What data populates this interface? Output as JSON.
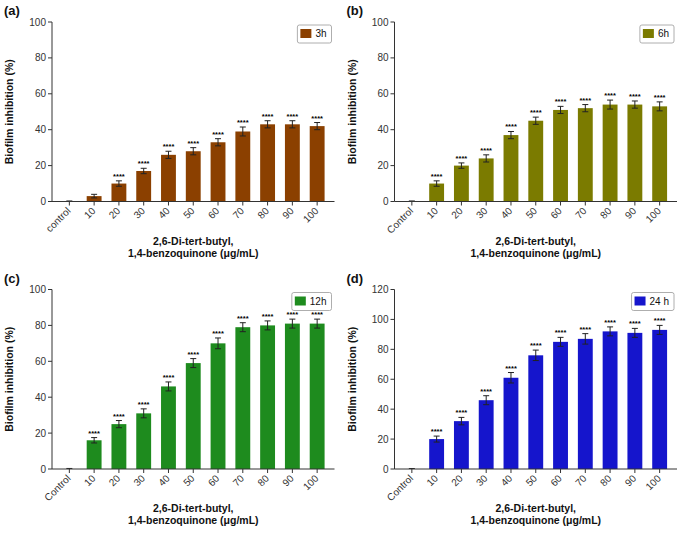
{
  "chart_data": [
    {
      "type": "bar",
      "title": "(a)",
      "xlabel": "2,6-Di-tert-butyl,\n1,4-benzoquinone (μg/mL)",
      "ylabel": "Biofilm inhibition (%)",
      "categories": [
        "control",
        "10",
        "20",
        "30",
        "40",
        "50",
        "60",
        "70",
        "80",
        "90",
        "100"
      ],
      "series": [
        {
          "name": "3h",
          "color": "#8B4000",
          "values": [
            0,
            3,
            10,
            17,
            26,
            28,
            33,
            39,
            43,
            43,
            42
          ],
          "errors": [
            0.3,
            1.0,
            1.5,
            1.5,
            2.0,
            2.0,
            2.0,
            2.5,
            2.0,
            2.0,
            2.0
          ],
          "sig": [
            null,
            null,
            "****",
            "****",
            "****",
            "****",
            "****",
            "****",
            "****",
            "****",
            "****"
          ]
        }
      ],
      "ylim": [
        0,
        100
      ],
      "yticks": [
        0,
        20,
        40,
        60,
        80,
        100
      ],
      "legend": "upper right",
      "grid": false
    },
    {
      "type": "bar",
      "title": "(b)",
      "xlabel": "2,6-Di-tert-butyl,\n1,4-benzoquinone (μg/mL)",
      "ylabel": "Biofilm inhibition (%)",
      "categories": [
        "Control",
        "10",
        "20",
        "30",
        "40",
        "50",
        "60",
        "70",
        "80",
        "90",
        "100"
      ],
      "series": [
        {
          "name": "6h",
          "color": "#7B7B00",
          "values": [
            0,
            10,
            20,
            24,
            37,
            45,
            51,
            52,
            54,
            54,
            53
          ],
          "errors": [
            0.3,
            1.5,
            1.5,
            2.0,
            2.0,
            2.0,
            2.0,
            2.0,
            2.5,
            2.0,
            2.5
          ],
          "sig": [
            null,
            "****",
            "****",
            "****",
            "****",
            "****",
            "****",
            "****",
            "****",
            "****",
            "****"
          ]
        }
      ],
      "ylim": [
        0,
        100
      ],
      "yticks": [
        0,
        20,
        40,
        60,
        80,
        100
      ],
      "legend": "upper right",
      "grid": false
    },
    {
      "type": "bar",
      "title": "(c)",
      "xlabel": "2,6-Di-tert-butyl,\n1,4-benzoquinone (μg/mL)",
      "ylabel": "Biofilm inhibition (%)",
      "categories": [
        "Control",
        "10",
        "20",
        "30",
        "40",
        "50",
        "60",
        "70",
        "80",
        "90",
        "100"
      ],
      "series": [
        {
          "name": "12h",
          "color": "#1E8B1E",
          "values": [
            0,
            16,
            25,
            31,
            46,
            59,
            70,
            79,
            80,
            81,
            81
          ],
          "errors": [
            0.3,
            1.5,
            2.0,
            2.5,
            2.5,
            2.5,
            3.0,
            2.5,
            2.5,
            2.5,
            2.5
          ],
          "sig": [
            null,
            "****",
            "****",
            "****",
            "****",
            "****",
            "****",
            "****",
            "****",
            "****",
            "****"
          ]
        }
      ],
      "ylim": [
        0,
        100
      ],
      "yticks": [
        0,
        20,
        40,
        60,
        80,
        100
      ],
      "legend": "upper right",
      "grid": false
    },
    {
      "type": "bar",
      "title": "(d)",
      "xlabel": "2,6-Di-tert-butyl,\n1,4-benzoquinone (μg/mL)",
      "ylabel": "Biofilm inhibition (%)",
      "categories": [
        "Control",
        "10",
        "20",
        "30",
        "40",
        "50",
        "60",
        "70",
        "80",
        "90",
        "100"
      ],
      "series": [
        {
          "name": "24 h",
          "color": "#1515CC",
          "values": [
            0,
            20,
            32,
            46,
            61,
            76,
            85,
            87,
            92,
            91,
            93
          ],
          "errors": [
            0.3,
            2.0,
            2.5,
            3.0,
            3.5,
            3.5,
            3.0,
            3.5,
            3.0,
            3.0,
            3.0
          ],
          "sig": [
            null,
            "****",
            "****",
            "****",
            "****",
            "****",
            "****",
            "****",
            "****",
            "****",
            "****"
          ]
        }
      ],
      "ylim": [
        0,
        120
      ],
      "yticks": [
        0,
        20,
        40,
        60,
        80,
        100,
        120
      ],
      "legend": "upper right",
      "grid": false
    }
  ]
}
